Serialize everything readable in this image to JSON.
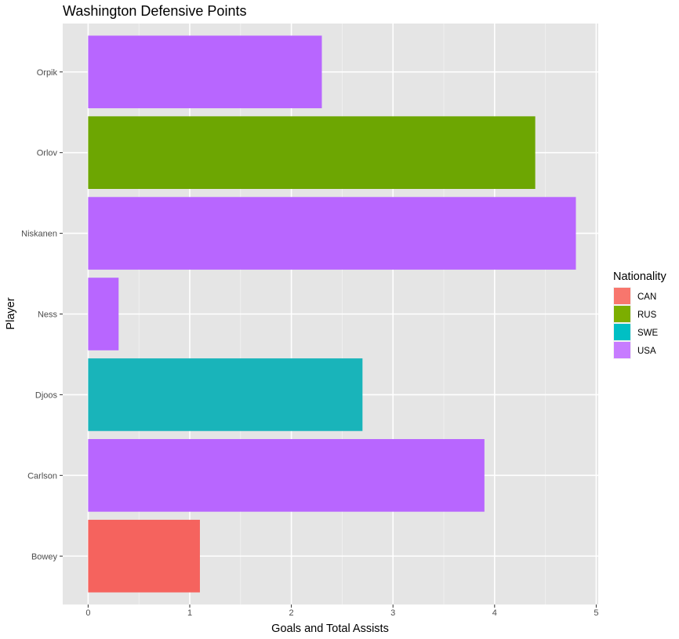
{
  "chart_data": {
    "type": "bar",
    "orientation": "horizontal",
    "title": "Washington Defensive Points",
    "xlabel": "Goals and Total Assists",
    "ylabel": "Player",
    "xlim": [
      -0.25,
      5.02
    ],
    "x_ticks": [
      "0",
      "1",
      "2",
      "3",
      "4",
      "5"
    ],
    "categories": [
      "Bowey",
      "Carlson",
      "Djoos",
      "Ness",
      "Niskanen",
      "Orlov",
      "Orpik"
    ],
    "values": [
      1.1,
      3.9,
      2.7,
      0.3,
      4.8,
      4.4,
      2.3
    ],
    "nationality": [
      "CAN",
      "USA",
      "SWE",
      "USA",
      "USA",
      "RUS",
      "USA"
    ],
    "grid": true,
    "legend": {
      "title": "Nationality",
      "placement": "right",
      "entries": [
        {
          "label": "CAN",
          "color": "#F8766D"
        },
        {
          "label": "RUS",
          "color": "#7CAE00"
        },
        {
          "label": "SWE",
          "color": "#00BFC4"
        },
        {
          "label": "USA",
          "color": "#C77CFF"
        }
      ]
    },
    "bar_colors": {
      "CAN": "#F5635E",
      "RUS": "#6DA602",
      "SWE": "#19B4BA",
      "USA": "#B866FF"
    },
    "panel_background": "#E5E5E5"
  }
}
